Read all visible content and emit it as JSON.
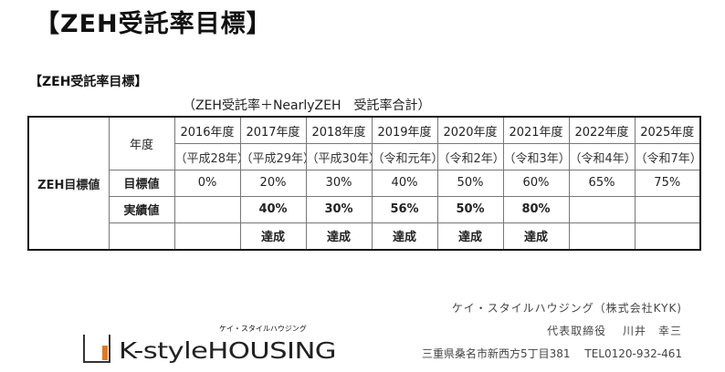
{
  "page_title": "【ZEH受託率目標】",
  "section_title": "【ZEH受託率目標】",
  "subtitle": "（ZEH受託率＋NearlyZEH　受託率合計）",
  "table": {
    "row_label": "ZEH目標値",
    "year_header": "年度",
    "years": [
      "2016年度",
      "2017年度",
      "2018年度",
      "2019年度",
      "2020年度",
      "2021年度",
      "2022年度",
      "2025年度"
    ],
    "eras": [
      "（平成28年）",
      "（平成29年）",
      "（平成30年）",
      "（令和元年）",
      "（令和2年）",
      "（令和3年）",
      "（令和4年）",
      "（令和7年）"
    ],
    "target_label": "目標値",
    "targets": [
      "0%",
      "20%",
      "30%",
      "40%",
      "50%",
      "60%",
      "65%",
      "75%"
    ],
    "actual_label": "実績値",
    "actuals": [
      "",
      "40%",
      "30%",
      "56%",
      "50%",
      "80%",
      "",
      ""
    ],
    "achieved": [
      "",
      "達成",
      "達成",
      "達成",
      "達成",
      "達成",
      "",
      ""
    ]
  },
  "logo": {
    "small_text": "ケイ・スタイルハウジング",
    "text": "K-styleHOUSING",
    "accent_color": "#e07a1f"
  },
  "company": {
    "name": "ケイ・スタイルハウジング（株式会社KYK)",
    "representative": "代表取締役　 川井　幸三",
    "address": "三重県桑名市新西方5丁目381　 TEL0120-932-461"
  }
}
